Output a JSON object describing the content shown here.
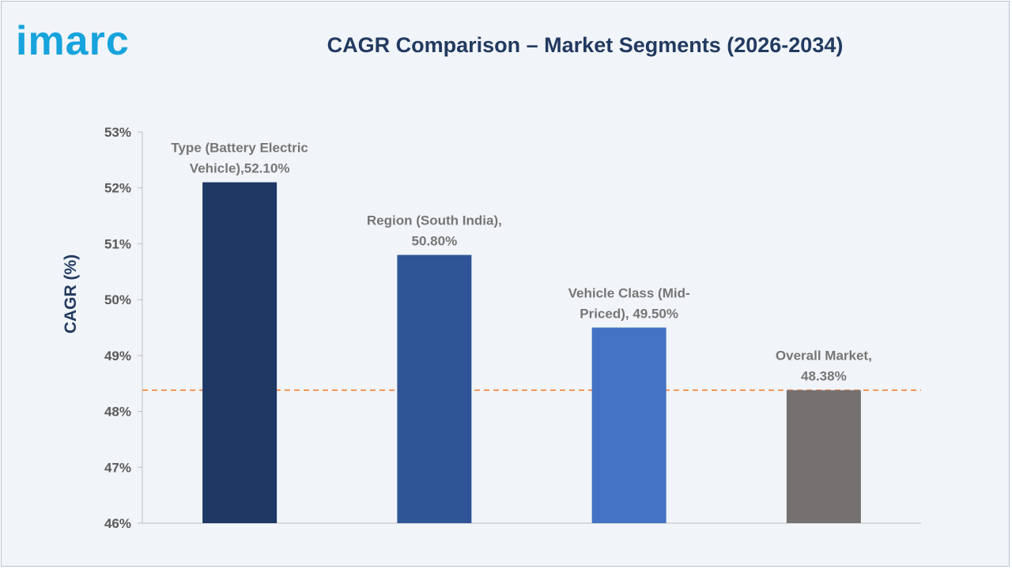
{
  "brand": {
    "logo_text": "imarc",
    "logo_color": "#17a3dc"
  },
  "chart_data": {
    "type": "bar",
    "title": "CAGR Comparison – Market Segments (2026-2034)",
    "ylabel": "CAGR (%)",
    "ylim": [
      46,
      53
    ],
    "yticks": [
      "46%",
      "47%",
      "48%",
      "49%",
      "50%",
      "51%",
      "52%",
      "53%"
    ],
    "categories": [
      "Type (Battery Electric Vehicle)",
      "Region (South India)",
      "Vehicle Class (Mid-Priced)",
      "Overall Market"
    ],
    "values": [
      52.1,
      50.8,
      49.5,
      48.38
    ],
    "data_labels": [
      [
        "Type (Battery Electric",
        "Vehicle),52.10%"
      ],
      [
        "Region (South India),",
        "50.80%"
      ],
      [
        "Vehicle Class (Mid-",
        "Priced), 49.50%"
      ],
      [
        "Overall Market,",
        "48.38%"
      ]
    ],
    "colors": [
      "#1f3864",
      "#2f5597",
      "#4472c4",
      "#767171"
    ],
    "reference_line": {
      "value": 48.38,
      "style": "dashed",
      "color": "#ed7d31"
    },
    "grid": false,
    "legend": "none"
  }
}
